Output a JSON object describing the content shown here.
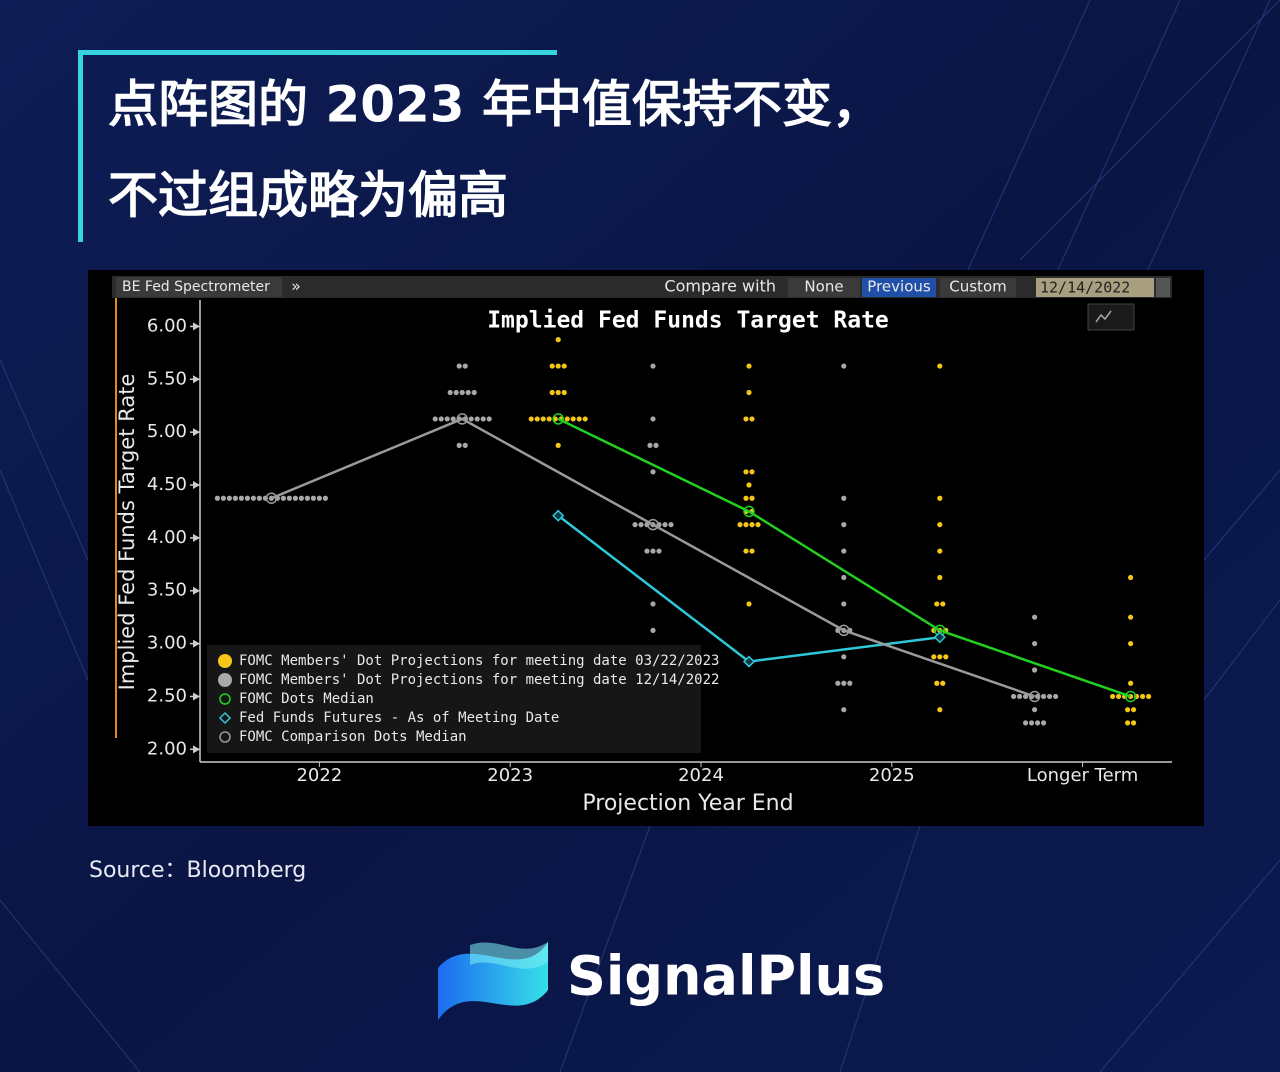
{
  "header": {
    "title_lines": [
      "点阵图的 2023 年中值保持不变，",
      "不过组成略为偏高"
    ]
  },
  "toolbar": {
    "app": "BE Fed Spectrometer",
    "expand": "»",
    "compare_label": "Compare with",
    "options": [
      "None",
      "Previous",
      "Custom"
    ],
    "selected": 1,
    "date": "12/14/2022"
  },
  "chart_data": {
    "type": "dot_plot",
    "title": "Implied Fed Funds Target Rate",
    "x_label": "Projection Year End",
    "y_label": "Implied Fed Funds Target Rate",
    "categories": [
      "2022",
      "2023",
      "2024",
      "2025",
      "Longer Term"
    ],
    "ylim": [
      1.88,
      6.25
    ],
    "yticks": [
      {
        "value": 2,
        "label": "2.00"
      },
      {
        "value": 2.5,
        "label": "2.50"
      },
      {
        "value": 3,
        "label": "3.00"
      },
      {
        "value": 3.5,
        "label": "3.50"
      },
      {
        "value": 4,
        "label": "4.00"
      },
      {
        "value": 4.5,
        "label": "4.50"
      },
      {
        "value": 5,
        "label": "5.00"
      },
      {
        "value": 5.5,
        "label": "5.50"
      },
      {
        "value": 6,
        "label": "6.00"
      }
    ],
    "grid": false,
    "legend": "lower left",
    "series": [
      {
        "name": "FOMC Members' Dot Projections for meeting date 03/22/2023",
        "type": "dots",
        "color": "#f5c518",
        "dots": [
          [],
          [
            {
              "y": 5.875,
              "count": 1
            },
            {
              "y": 5.625,
              "count": 3
            },
            {
              "y": 5.375,
              "count": 3
            },
            {
              "y": 5.125,
              "count": 10
            },
            {
              "y": 4.875,
              "count": 1
            }
          ],
          [
            {
              "y": 5.625,
              "count": 1
            },
            {
              "y": 5.375,
              "count": 1
            },
            {
              "y": 5.125,
              "count": 2
            },
            {
              "y": 4.625,
              "count": 2
            },
            {
              "y": 4.5,
              "count": 1
            },
            {
              "y": 4.375,
              "count": 2
            },
            {
              "y": 4.25,
              "count": 2
            },
            {
              "y": 4.125,
              "count": 4
            },
            {
              "y": 3.875,
              "count": 2
            },
            {
              "y": 3.375,
              "count": 1
            }
          ],
          [
            {
              "y": 5.625,
              "count": 1
            },
            {
              "y": 4.375,
              "count": 1
            },
            {
              "y": 4.125,
              "count": 1
            },
            {
              "y": 3.875,
              "count": 1
            },
            {
              "y": 3.625,
              "count": 1
            },
            {
              "y": 3.375,
              "count": 2
            },
            {
              "y": 3.125,
              "count": 3
            },
            {
              "y": 2.875,
              "count": 3
            },
            {
              "y": 2.625,
              "count": 2
            },
            {
              "y": 2.375,
              "count": 1
            }
          ],
          [
            {
              "y": 3.625,
              "count": 1
            },
            {
              "y": 3.25,
              "count": 1
            },
            {
              "y": 3,
              "count": 1
            },
            {
              "y": 2.625,
              "count": 1
            },
            {
              "y": 2.5,
              "count": 7
            },
            {
              "y": 2.375,
              "count": 2
            },
            {
              "y": 2.25,
              "count": 2
            }
          ]
        ]
      },
      {
        "name": "FOMC Members' Dot Projections for meeting date 12/14/2022",
        "type": "dots",
        "color": "#a8a8a8",
        "dots": [
          [
            {
              "y": 4.375,
              "count": 19
            }
          ],
          [
            {
              "y": 5.625,
              "count": 2
            },
            {
              "y": 5.375,
              "count": 5
            },
            {
              "y": 5.125,
              "count": 10
            },
            {
              "y": 4.875,
              "count": 2
            }
          ],
          [
            {
              "y": 5.625,
              "count": 1
            },
            {
              "y": 5.125,
              "count": 1
            },
            {
              "y": 4.875,
              "count": 2
            },
            {
              "y": 4.625,
              "count": 1
            },
            {
              "y": 4.125,
              "count": 7
            },
            {
              "y": 3.875,
              "count": 3
            },
            {
              "y": 3.375,
              "count": 1
            },
            {
              "y": 3.125,
              "count": 1
            }
          ],
          [
            {
              "y": 5.625,
              "count": 1
            },
            {
              "y": 4.375,
              "count": 1
            },
            {
              "y": 4.125,
              "count": 1
            },
            {
              "y": 3.875,
              "count": 1
            },
            {
              "y": 3.625,
              "count": 1
            },
            {
              "y": 3.375,
              "count": 1
            },
            {
              "y": 3.125,
              "count": 3
            },
            {
              "y": 2.875,
              "count": 1
            },
            {
              "y": 2.625,
              "count": 3
            },
            {
              "y": 2.375,
              "count": 1
            }
          ],
          [
            {
              "y": 3.25,
              "count": 1
            },
            {
              "y": 3,
              "count": 1
            },
            {
              "y": 2.75,
              "count": 1
            },
            {
              "y": 2.5,
              "count": 8
            },
            {
              "y": 2.375,
              "count": 1
            },
            {
              "y": 2.25,
              "count": 4
            }
          ]
        ]
      },
      {
        "name": "FOMC Dots Median",
        "type": "line",
        "marker": "circle",
        "color": "#22d11f",
        "values": [
          null,
          5.125,
          4.25,
          3.125,
          2.5
        ]
      },
      {
        "name": "Fed Funds Futures - As of Meeting Date",
        "type": "line",
        "marker": "diamond",
        "color": "#2ec8d8",
        "values": [
          null,
          4.21,
          2.83,
          3.06,
          null
        ]
      },
      {
        "name": "FOMC Comparison Dots Median",
        "type": "line",
        "marker": "circle",
        "color": "#9a9a9a",
        "values": [
          4.375,
          5.125,
          4.125,
          3.125,
          2.5
        ]
      }
    ]
  },
  "source": "Source：Bloomberg",
  "brand": "SignalPlus"
}
